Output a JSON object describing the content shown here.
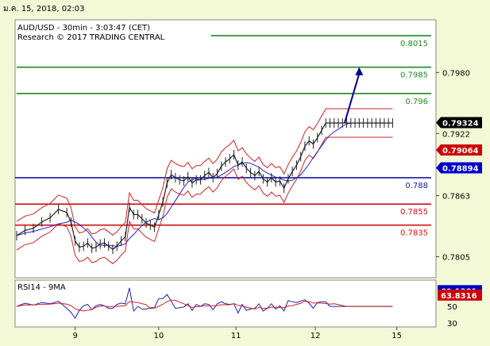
{
  "timestamp": "ม.ค. 15, 2018, 02:03",
  "chart_data": {
    "type": "line",
    "title": "AUD/USD - 30min - 3:03:47 (CET)",
    "subtitle": "Research © 2017 TRADING CENTRAL",
    "x_ticks": [
      "9",
      "10",
      "11",
      "12",
      "15"
    ],
    "main_panel": {
      "ylim": [
        0.7785,
        0.803
      ],
      "y_ticks": [
        0.7805,
        0.7863,
        0.7922,
        0.798
      ],
      "y_tick_labels": [
        "0.7805",
        "0.7863",
        "0.7922",
        "0.7980"
      ],
      "price_tag": {
        "value": 0.79324,
        "label": "0.79324",
        "color": "#000000"
      },
      "indicator_tags": [
        {
          "value": 0.79064,
          "label": "0.79064",
          "color": "#cc0000"
        },
        {
          "value": 0.78894,
          "label": "0.78894",
          "color": "#0000cc"
        }
      ],
      "levels": [
        {
          "value": 0.8015,
          "label": "0.8015",
          "color": "#1e8c1e"
        },
        {
          "value": 0.7985,
          "label": "0.7985",
          "color": "#1e8c1e"
        },
        {
          "value": 0.796,
          "label": "0.796",
          "color": "#1e8c1e"
        },
        {
          "value": 0.788,
          "label": "0.788",
          "color": "#1a1aa8"
        },
        {
          "value": 0.7855,
          "label": "0.7855",
          "color": "#cc1111"
        },
        {
          "value": 0.7835,
          "label": "0.7835",
          "color": "#cc1111"
        }
      ],
      "price_series": {
        "name": "AUD/USD",
        "color": "#222222",
        "x": [
          0,
          4,
          8,
          12,
          16,
          20,
          24,
          26,
          28,
          30,
          32,
          34,
          36,
          38,
          40,
          42,
          44,
          46,
          48,
          50,
          52,
          54,
          56,
          58,
          60,
          62,
          64,
          66,
          68,
          70,
          72,
          74,
          76,
          78,
          80,
          82,
          84,
          86,
          88,
          90,
          92,
          94,
          96,
          98,
          100,
          102,
          104,
          106,
          108,
          110,
          112,
          114,
          116,
          118,
          120,
          122,
          124,
          126,
          128,
          130,
          132,
          134,
          136,
          138,
          140,
          142,
          144,
          146,
          148,
          150,
          152,
          154,
          156,
          158,
          160,
          162,
          164,
          166,
          168,
          170,
          172,
          174,
          176,
          178,
          180
        ],
        "values": [
          0.7825,
          0.783,
          0.7832,
          0.7838,
          0.7842,
          0.785,
          0.7847,
          0.7838,
          0.782,
          0.7814,
          0.7815,
          0.7818,
          0.7813,
          0.7814,
          0.7817,
          0.7818,
          0.7815,
          0.7812,
          0.7815,
          0.782,
          0.7824,
          0.7852,
          0.7845,
          0.7845,
          0.7841,
          0.7837,
          0.7835,
          0.7833,
          0.7845,
          0.7857,
          0.7875,
          0.7883,
          0.788,
          0.7878,
          0.7877,
          0.7881,
          0.7875,
          0.7878,
          0.7878,
          0.7882,
          0.7885,
          0.788,
          0.7884,
          0.7891,
          0.7895,
          0.7898,
          0.7902,
          0.7892,
          0.7895,
          0.7889,
          0.7885,
          0.7882,
          0.7886,
          0.7879,
          0.7876,
          0.788,
          0.7876,
          0.7877,
          0.787,
          0.7879,
          0.7886,
          0.7892,
          0.79,
          0.791,
          0.7915,
          0.7912,
          0.7918,
          0.7925,
          0.7932,
          0.7932,
          0.7932,
          0.7932,
          0.7932,
          0.7932,
          0.7932,
          0.7932,
          0.7932,
          0.7932,
          0.7932,
          0.7932,
          0.7932,
          0.7932,
          0.7932,
          0.7932,
          0.7932
        ]
      },
      "forecast_arrow": {
        "from_x": 157,
        "from_value": 0.7932,
        "to_x": 164,
        "to_value": 0.7985,
        "color": "#00008b"
      }
    },
    "rsi_panel": {
      "label": "RSI14 - 9MA",
      "ylim": [
        25,
        82
      ],
      "y_ticks": [
        30,
        50
      ],
      "y_tick_labels": [
        "30",
        "50"
      ],
      "tags": [
        {
          "value": 69.1381,
          "label": "69.1381",
          "color": "#0000cc"
        },
        {
          "value": 63.8316,
          "label": "63.8316",
          "color": "#cc0000"
        }
      ]
    }
  }
}
